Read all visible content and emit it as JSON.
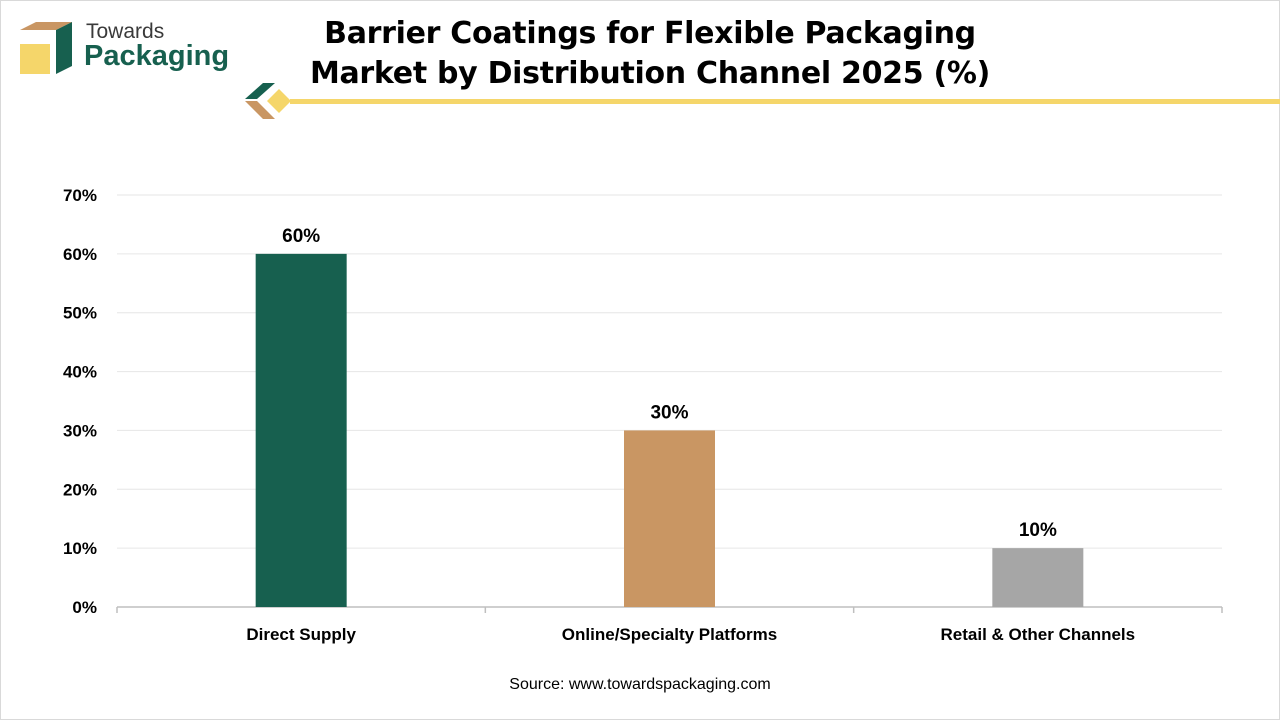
{
  "brand": {
    "line1": "Towards",
    "line2": "Packaging"
  },
  "colors": {
    "direct": "#17604f",
    "online": "#c99663",
    "retail": "#a6a6a6",
    "accent": "#f5d66a"
  },
  "chart_data": {
    "type": "bar",
    "title": "Barrier Coatings for Flexible Packaging Market by Distribution Channel 2025 (%)",
    "categories": [
      "Direct Supply",
      "Online/Specialty Platforms",
      "Retail & Other Channels"
    ],
    "values": [
      60,
      30,
      10
    ],
    "data_labels": [
      "60%",
      "30%",
      "10%"
    ],
    "bar_colors": [
      "#17604f",
      "#c99663",
      "#a6a6a6"
    ],
    "ylim": [
      0,
      70
    ],
    "yticks": [
      0,
      10,
      20,
      30,
      40,
      50,
      60,
      70
    ],
    "ytick_labels": [
      "0%",
      "10%",
      "20%",
      "30%",
      "40%",
      "50%",
      "60%",
      "70%"
    ],
    "xlabel": "",
    "ylabel": "",
    "grid": true,
    "legend": "none"
  },
  "source": "Source: www.towardspackaging.com"
}
